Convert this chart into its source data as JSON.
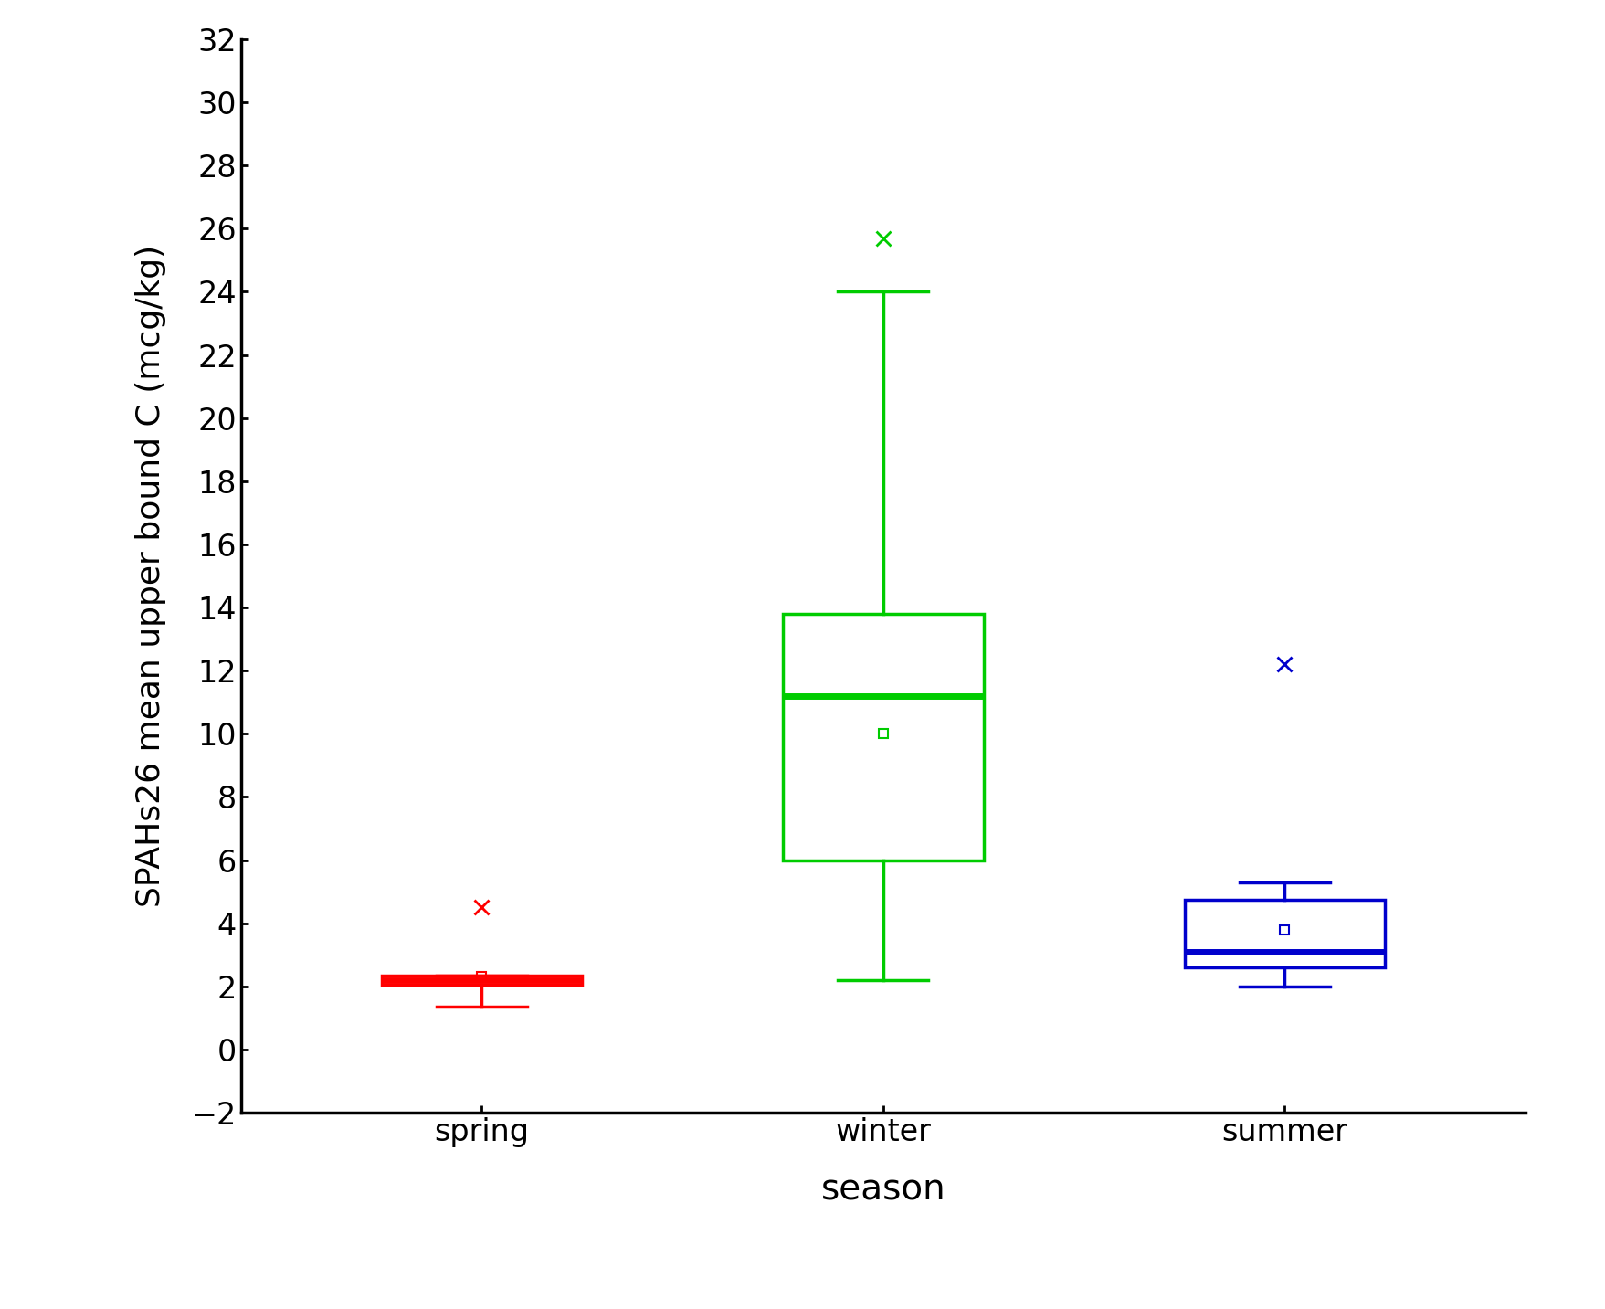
{
  "title": "",
  "xlabel": "season",
  "ylabel": "SPAHs26 mean upper bound C (mcg/kg)",
  "categories": [
    "spring",
    "winter",
    "summer"
  ],
  "colors": [
    "#ff0000",
    "#00cc00",
    "#0000cc"
  ],
  "ylim": [
    -2,
    32
  ],
  "yticks": [
    -2,
    0,
    2,
    4,
    6,
    8,
    10,
    12,
    14,
    16,
    18,
    20,
    22,
    24,
    26,
    28,
    30,
    32
  ],
  "boxes": [
    {
      "label": "spring",
      "q1": 2.05,
      "median": 2.2,
      "q3": 2.35,
      "whisker_low": 1.35,
      "whisker_high": 2.35,
      "mean": 2.3,
      "flier_high": 4.5,
      "flier_low": null
    },
    {
      "label": "winter",
      "q1": 6.0,
      "median": 11.2,
      "q3": 13.8,
      "whisker_low": 2.2,
      "whisker_high": 24.0,
      "mean": 10.0,
      "flier_high": 25.7,
      "flier_low": null
    },
    {
      "label": "summer",
      "q1": 2.6,
      "median": 3.1,
      "q3": 4.75,
      "whisker_low": 2.0,
      "whisker_high": 5.3,
      "mean": 3.8,
      "flier_high": 12.2,
      "flier_low": null
    }
  ],
  "box_width": 0.5,
  "xlabel_fontsize": 28,
  "ylabel_fontsize": 26,
  "tick_fontsize": 24,
  "linewidth": 2.5,
  "background_color": "#ffffff",
  "spine_linewidth": 2.5
}
